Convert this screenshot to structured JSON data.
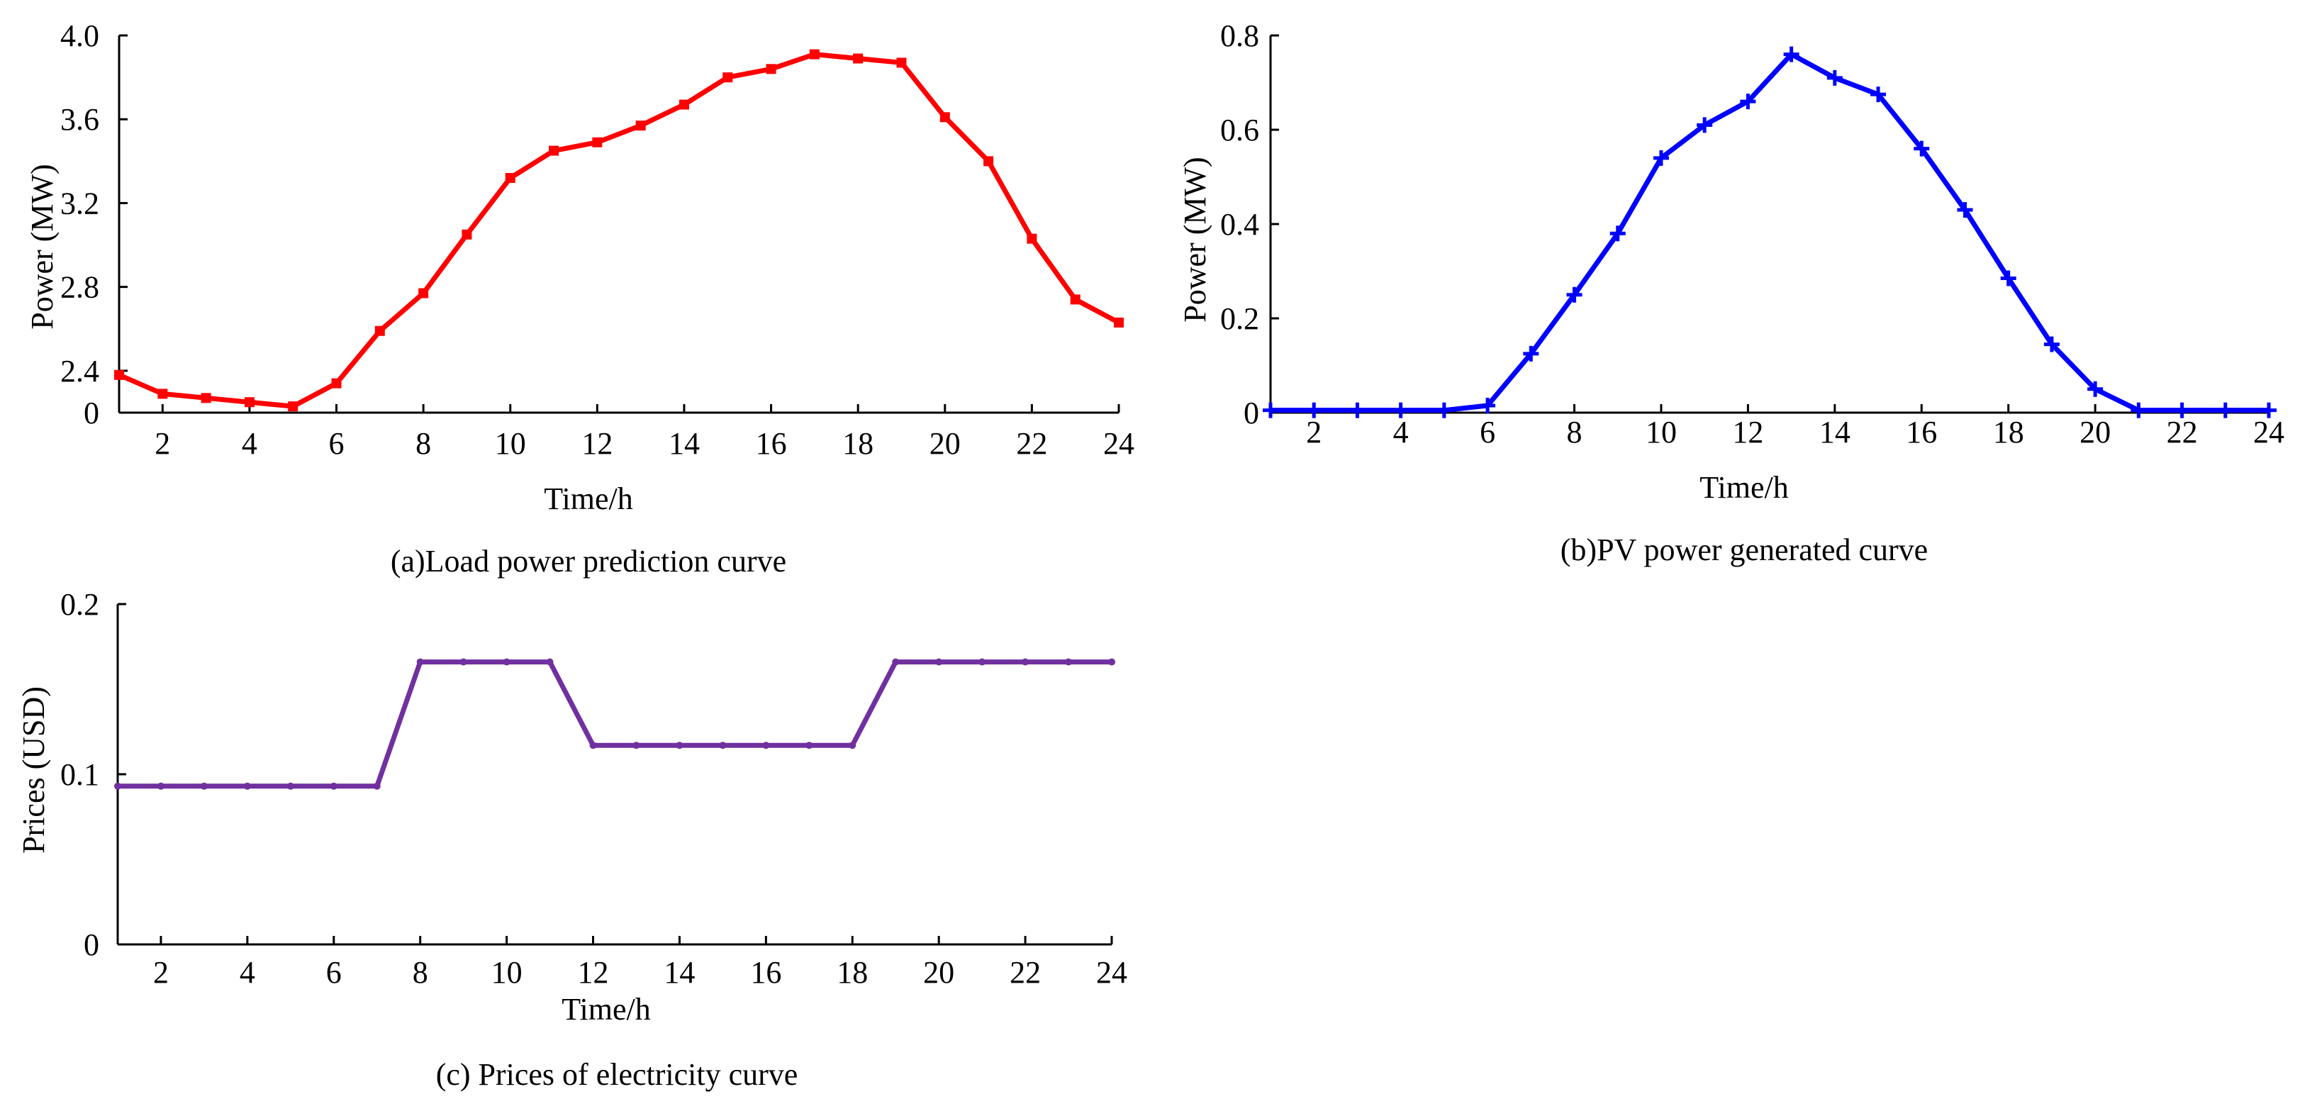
{
  "chart_data": [
    {
      "id": "load",
      "type": "line",
      "caption": "(a)Load power prediction curve",
      "xlabel": "Time/h",
      "ylabel": "Power (MW)",
      "color": "#ff0000",
      "marker": "square",
      "xlim": [
        1,
        24
      ],
      "ylim": [
        2.2,
        4.0
      ],
      "y_break": true,
      "x_ticks": [
        "2",
        "4",
        "6",
        "8",
        "10",
        "12",
        "14",
        "16",
        "18",
        "20",
        "22",
        "24"
      ],
      "y_ticks": [
        "0",
        "2.4",
        "2.8",
        "3.2",
        "3.6",
        "4.0"
      ],
      "y_tick_values": [
        2.2,
        2.4,
        2.8,
        3.2,
        3.6,
        4.0
      ],
      "x": [
        1,
        2,
        3,
        4,
        5,
        6,
        7,
        8,
        9,
        10,
        11,
        12,
        13,
        14,
        15,
        16,
        17,
        18,
        19,
        20,
        21,
        22,
        23,
        24
      ],
      "values": [
        2.38,
        2.29,
        2.27,
        2.25,
        2.23,
        2.34,
        2.59,
        2.77,
        3.05,
        3.32,
        3.45,
        3.49,
        3.57,
        3.67,
        3.8,
        3.84,
        3.91,
        3.89,
        3.87,
        3.61,
        3.4,
        3.03,
        2.74,
        2.63
      ]
    },
    {
      "id": "pv",
      "type": "line",
      "caption": "(b)PV power generated curve",
      "xlabel": "Time/h",
      "ylabel": "Power (MW)",
      "color": "#0000ff",
      "marker": "plus",
      "xlim": [
        1,
        24
      ],
      "ylim": [
        0,
        0.8
      ],
      "x_ticks": [
        "2",
        "4",
        "6",
        "8",
        "10",
        "12",
        "14",
        "16",
        "18",
        "20",
        "22",
        "24"
      ],
      "y_ticks": [
        "0",
        "0.2",
        "0.4",
        "0.6",
        "0.8"
      ],
      "y_tick_values": [
        0,
        0.2,
        0.4,
        0.6,
        0.8
      ],
      "x": [
        1,
        2,
        3,
        4,
        5,
        6,
        7,
        8,
        9,
        10,
        11,
        12,
        13,
        14,
        15,
        16,
        17,
        18,
        19,
        20,
        21,
        22,
        23,
        24
      ],
      "values": [
        0.005,
        0.005,
        0.005,
        0.005,
        0.005,
        0.015,
        0.125,
        0.25,
        0.38,
        0.54,
        0.61,
        0.66,
        0.76,
        0.71,
        0.675,
        0.56,
        0.43,
        0.285,
        0.145,
        0.05,
        0.005,
        0.005,
        0.005,
        0.005
      ]
    },
    {
      "id": "price",
      "type": "line",
      "caption": "(c) Prices of electricity curve",
      "xlabel": "Time/h",
      "ylabel": "Prices (USD)",
      "color": "#7030a0",
      "marker": "dot",
      "xlim": [
        1,
        24
      ],
      "ylim": [
        0,
        0.2
      ],
      "x_ticks": [
        "2",
        "4",
        "6",
        "8",
        "10",
        "12",
        "14",
        "16",
        "18",
        "20",
        "22",
        "24"
      ],
      "y_ticks": [
        "0",
        "0.1",
        "0.2"
      ],
      "y_tick_values": [
        0,
        0.1,
        0.2
      ],
      "x": [
        1,
        2,
        3,
        4,
        5,
        6,
        7,
        8,
        9,
        10,
        11,
        12,
        13,
        14,
        15,
        16,
        17,
        18,
        19,
        20,
        21,
        22,
        23,
        24
      ],
      "values": [
        0.093,
        0.093,
        0.093,
        0.093,
        0.093,
        0.093,
        0.093,
        0.166,
        0.166,
        0.166,
        0.166,
        0.117,
        0.117,
        0.117,
        0.117,
        0.117,
        0.117,
        0.117,
        0.166,
        0.166,
        0.166,
        0.166,
        0.166,
        0.166
      ]
    }
  ]
}
